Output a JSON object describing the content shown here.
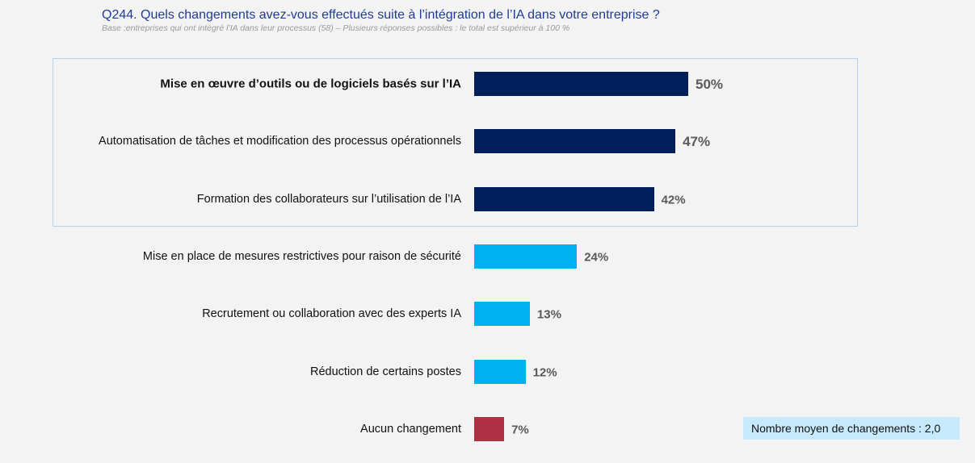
{
  "header": {
    "title": "Q244. Quels changements avez-vous effectués suite à l’intégration de l’IA dans votre entreprise ?",
    "subtitle": "Base :entreprises qui ont intégré l’IA dans leur processus (58) – Plusieurs réponses possibles : le total est supérieur à 100 %"
  },
  "colors": {
    "dark_navy": "#001e5a",
    "light_blue": "#00b0f0",
    "red": "#ad3142",
    "highlight_border": "#b8d2ea",
    "avg_box_bg": "#c6e9fb"
  },
  "chart_data": {
    "type": "bar",
    "orientation": "horizontal",
    "title": "Q244. Quels changements avez-vous effectués suite à l’intégration de l’IA dans votre entreprise ?",
    "xlabel": "",
    "ylabel": "",
    "xlim": [
      0,
      100
    ],
    "unit": "%",
    "grid": false,
    "categories": [
      "Mise en œuvre d’outils ou de logiciels basés sur l’IA",
      "Automatisation de tâches et modification des processus opérationnels",
      "Formation des collaborateurs sur l’utilisation de l’IA",
      "Mise en place de mesures restrictives pour raison de sécurité",
      "Recrutement ou collaboration avec des experts IA",
      "Réduction de certains postes",
      "Aucun changement"
    ],
    "values": [
      50,
      47,
      42,
      24,
      13,
      12,
      7
    ],
    "value_labels": [
      "50%",
      "47%",
      "42%",
      "24%",
      "13%",
      "12%",
      "7%"
    ],
    "bar_colors": [
      "#001e5a",
      "#001e5a",
      "#001e5a",
      "#00b0f0",
      "#00b0f0",
      "#00b0f0",
      "#ad3142"
    ],
    "highlighted_top": 3
  },
  "footer": {
    "average_label": "Nombre moyen de changements : 2,0"
  }
}
